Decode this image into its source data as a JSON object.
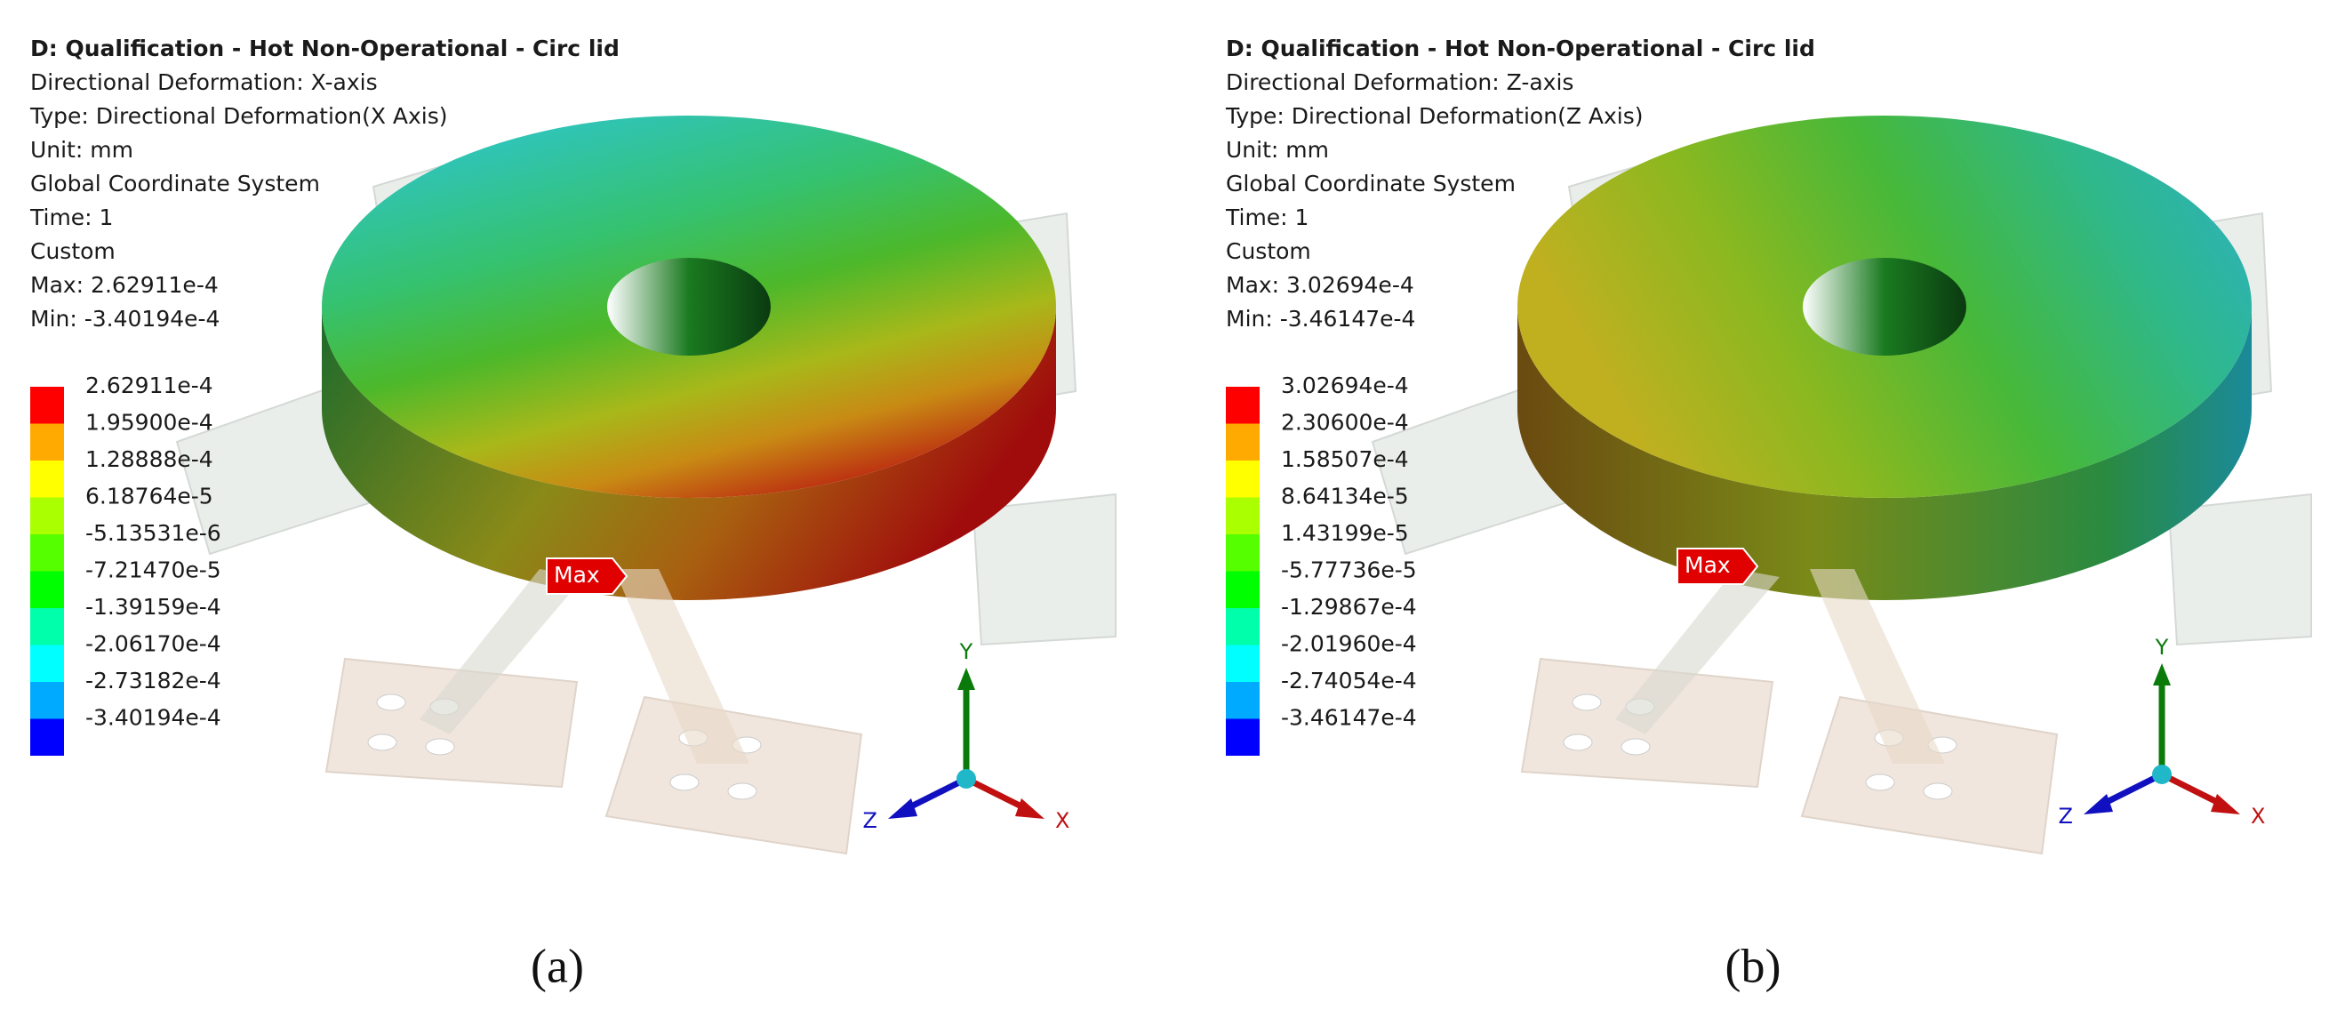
{
  "legend_colors": [
    "#ff0000",
    "#ffaa00",
    "#ffff00",
    "#aaff00",
    "#55ff00",
    "#00ff00",
    "#00ffaa",
    "#00ffff",
    "#00aaff",
    "#0000ff"
  ],
  "panels": [
    {
      "header": [
        "D: Qualification - Hot Non-Operational - Circ lid",
        "Directional Deformation: X-axis",
        "Type: Directional Deformation(X Axis)",
        "Unit: mm",
        "Global Coordinate System",
        "Time: 1",
        "Custom",
        "Max: 2.62911e-4",
        "Min: -3.40194e-4"
      ],
      "legend": [
        "2.62911e-4",
        "1.95900e-4",
        "1.28888e-4",
        "6.18764e-5",
        "-5.13531e-6",
        "-7.21470e-5",
        "-1.39159e-4",
        "-2.06170e-4",
        "-2.73182e-4",
        "-3.40194e-4"
      ],
      "max_tag": "Max",
      "axes": {
        "y": "Y",
        "z": "Z",
        "x": "X"
      },
      "caption": "(a)"
    },
    {
      "header": [
        "D: Qualification - Hot Non-Operational - Circ lid",
        "Directional Deformation: Z-axis",
        "Type: Directional Deformation(Z Axis)",
        "Unit: mm",
        "Global Coordinate System",
        "Time: 1",
        "Custom",
        "Max: 3.02694e-4",
        "Min: -3.46147e-4"
      ],
      "legend": [
        "3.02694e-4",
        "2.30600e-4",
        "1.58507e-4",
        "8.64134e-5",
        "1.43199e-5",
        "-5.77736e-5",
        "-1.29867e-4",
        "-2.01960e-4",
        "-2.74054e-4",
        "-3.46147e-4"
      ],
      "max_tag": "Max",
      "axes": {
        "y": "Y",
        "z": "Z",
        "x": "X"
      },
      "caption": "(b)"
    }
  ]
}
